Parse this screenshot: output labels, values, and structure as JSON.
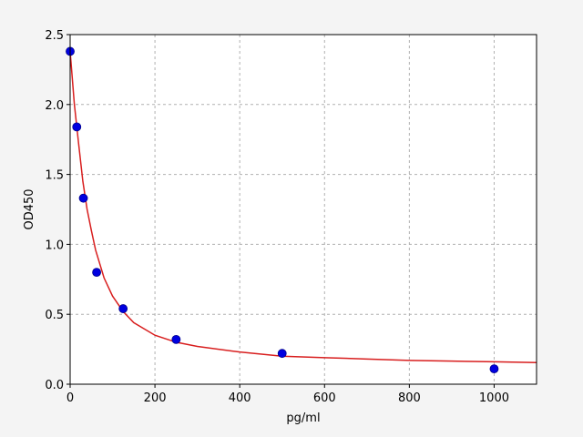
{
  "chart_data": {
    "type": "scatter",
    "xlabel": "pg/ml",
    "ylabel": "OD450",
    "xlim": [
      0,
      1100
    ],
    "ylim": [
      0,
      2.5
    ],
    "xticks": [
      0,
      200,
      400,
      600,
      800,
      1000
    ],
    "yticks": [
      {
        "value": 0,
        "label": "0.0"
      },
      0.5,
      {
        "value": 1,
        "label": "1.0"
      },
      1.5,
      {
        "value": 2,
        "label": "2.0"
      },
      2.5
    ],
    "grid": true,
    "series": [
      {
        "type": "line",
        "color": "#d81e1e",
        "x": [
          0,
          10,
          20,
          30,
          40,
          50,
          60,
          80,
          100,
          125,
          150,
          200,
          250,
          300,
          400,
          500,
          600,
          700,
          800,
          900,
          1000,
          1100
        ],
        "values": [
          2.38,
          2.0,
          1.72,
          1.45,
          1.25,
          1.1,
          0.96,
          0.76,
          0.63,
          0.52,
          0.44,
          0.35,
          0.3,
          0.27,
          0.23,
          0.2,
          0.19,
          0.18,
          0.17,
          0.165,
          0.16,
          0.155
        ]
      },
      {
        "type": "scatter",
        "color": "#0000e0",
        "x": [
          0,
          15.6,
          31.25,
          62.5,
          125,
          250,
          500,
          1000
        ],
        "values": [
          2.38,
          1.84,
          1.33,
          0.8,
          0.54,
          0.32,
          0.22,
          0.11
        ]
      }
    ]
  }
}
